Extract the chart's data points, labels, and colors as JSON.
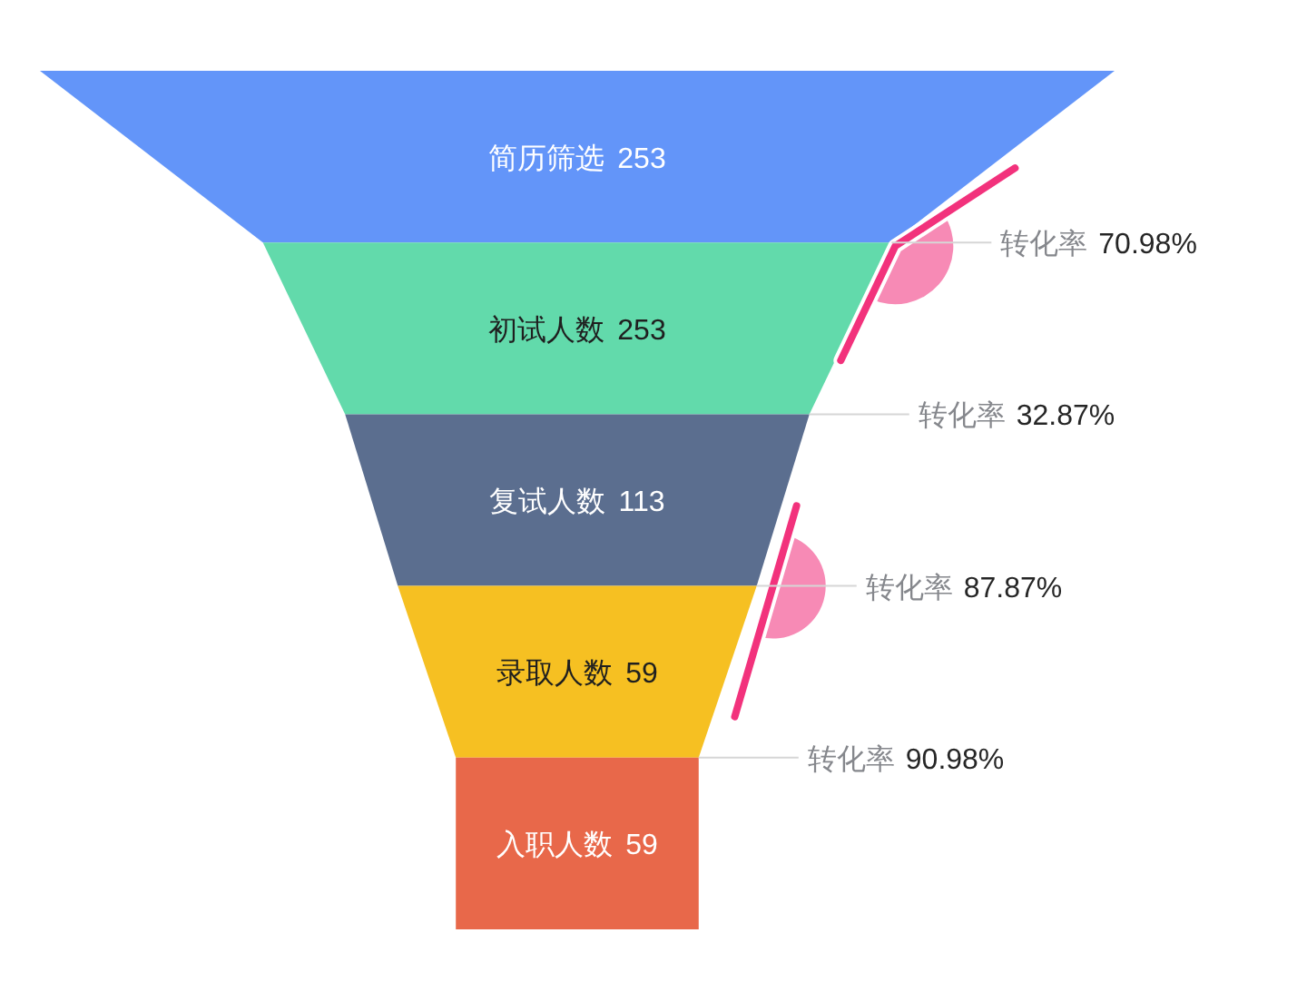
{
  "chart_data": {
    "type": "other",
    "categories": [
      "简历筛选",
      "初试人数",
      "复试人数",
      "录取人数",
      "入职人数"
    ],
    "values": [
      253,
      253,
      113,
      59,
      59
    ],
    "colors": [
      "#6395f9",
      "#62daab",
      "#5b6e8f",
      "#f6c022",
      "#e8684a"
    ],
    "data_labels": true,
    "annotations": [
      "转化率 70.98%",
      "转化率 32.87%",
      "转化率 87.87%",
      "转化率 90.98%"
    ]
  }
}
